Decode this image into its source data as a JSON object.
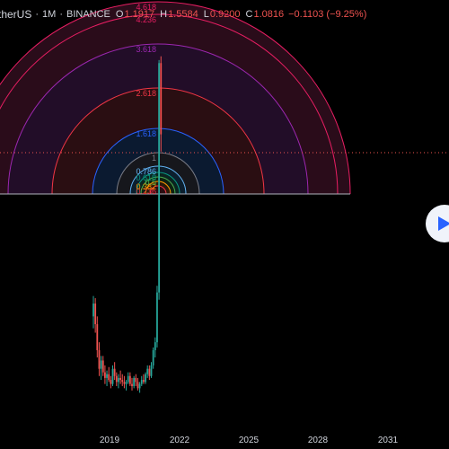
{
  "legend": {
    "symbol": "therUS",
    "interval": "1M",
    "exchange": "BINANCE",
    "open_label": "O",
    "open": "1.1917",
    "high_label": "H",
    "high": "1.5584",
    "low_label": "L",
    "low": "0.9200",
    "close_label": "C",
    "close": "1.0816",
    "change": "−0.1103 (−9.25%)"
  },
  "fib_levels": [
    {
      "label": "0.236",
      "color": "#f23645",
      "fill": "#2a0e12"
    },
    {
      "label": "0.382",
      "color": "#ff9800",
      "fill": "#2a1a0a"
    },
    {
      "label": "0.5",
      "color": "#4caf50",
      "fill": "#0e2212"
    },
    {
      "label": "0.618",
      "color": "#089981",
      "fill": "#0b2420"
    },
    {
      "label": "0.786",
      "color": "#64b5f6",
      "fill": "#0c1f2e"
    },
    {
      "label": "1",
      "color": "#787b86",
      "fill": "#16171c"
    },
    {
      "label": "1.618",
      "color": "#2962ff",
      "fill": "#0b1a30"
    },
    {
      "label": "2.618",
      "color": "#f23645",
      "fill": "#2a0e12"
    },
    {
      "label": "3.618",
      "color": "#9c27b0",
      "fill": "#220d28"
    },
    {
      "label": "4.236",
      "color": "#e91e63",
      "fill": "#2a0c1a"
    },
    {
      "label": "4.618",
      "color": "#e91e63",
      "fill": "#2a0c1a"
    }
  ],
  "chart_data": {
    "type": "candlestick",
    "x_ticks": [
      "2019",
      "2022",
      "2025",
      "2028",
      "2031"
    ],
    "up_color": "#26a69a",
    "down_color": "#ef5350",
    "last_price_line_color": "#ef5350",
    "candles": [
      {
        "o": 0.9,
        "h": 1.15,
        "l": 0.78,
        "c": 1.05
      },
      {
        "o": 1.05,
        "h": 1.12,
        "l": 0.74,
        "c": 0.82
      },
      {
        "o": 0.82,
        "h": 0.9,
        "l": 0.55,
        "c": 0.6
      },
      {
        "o": 0.6,
        "h": 0.66,
        "l": 0.44,
        "c": 0.48
      },
      {
        "o": 0.48,
        "h": 0.56,
        "l": 0.42,
        "c": 0.53
      },
      {
        "o": 0.53,
        "h": 0.56,
        "l": 0.44,
        "c": 0.46
      },
      {
        "o": 0.46,
        "h": 0.5,
        "l": 0.4,
        "c": 0.43
      },
      {
        "o": 0.43,
        "h": 0.47,
        "l": 0.39,
        "c": 0.45
      },
      {
        "o": 0.45,
        "h": 0.49,
        "l": 0.41,
        "c": 0.42
      },
      {
        "o": 0.42,
        "h": 0.44,
        "l": 0.38,
        "c": 0.4
      },
      {
        "o": 0.4,
        "h": 0.5,
        "l": 0.39,
        "c": 0.48
      },
      {
        "o": 0.48,
        "h": 0.52,
        "l": 0.42,
        "c": 0.44
      },
      {
        "o": 0.44,
        "h": 0.46,
        "l": 0.39,
        "c": 0.41
      },
      {
        "o": 0.41,
        "h": 0.45,
        "l": 0.38,
        "c": 0.43
      },
      {
        "o": 0.43,
        "h": 0.47,
        "l": 0.4,
        "c": 0.42
      },
      {
        "o": 0.42,
        "h": 0.45,
        "l": 0.39,
        "c": 0.41
      },
      {
        "o": 0.41,
        "h": 0.44,
        "l": 0.38,
        "c": 0.4
      },
      {
        "o": 0.4,
        "h": 0.42,
        "l": 0.37,
        "c": 0.41
      },
      {
        "o": 0.41,
        "h": 0.46,
        "l": 0.4,
        "c": 0.44
      },
      {
        "o": 0.44,
        "h": 0.46,
        "l": 0.39,
        "c": 0.4
      },
      {
        "o": 0.4,
        "h": 0.43,
        "l": 0.37,
        "c": 0.39
      },
      {
        "o": 0.39,
        "h": 0.44,
        "l": 0.38,
        "c": 0.43
      },
      {
        "o": 0.43,
        "h": 0.45,
        "l": 0.39,
        "c": 0.41
      },
      {
        "o": 0.41,
        "h": 0.43,
        "l": 0.37,
        "c": 0.38
      },
      {
        "o": 0.38,
        "h": 0.41,
        "l": 0.36,
        "c": 0.4
      },
      {
        "o": 0.4,
        "h": 0.44,
        "l": 0.39,
        "c": 0.42
      },
      {
        "o": 0.42,
        "h": 0.45,
        "l": 0.4,
        "c": 0.41
      },
      {
        "o": 0.41,
        "h": 0.46,
        "l": 0.4,
        "c": 0.45
      },
      {
        "o": 0.45,
        "h": 0.5,
        "l": 0.43,
        "c": 0.48
      },
      {
        "o": 0.48,
        "h": 0.5,
        "l": 0.42,
        "c": 0.44
      },
      {
        "o": 0.44,
        "h": 0.52,
        "l": 0.43,
        "c": 0.5
      },
      {
        "o": 0.5,
        "h": 0.62,
        "l": 0.48,
        "c": 0.6
      },
      {
        "o": 0.6,
        "h": 0.7,
        "l": 0.55,
        "c": 0.66
      },
      {
        "o": 0.66,
        "h": 1.3,
        "l": 0.62,
        "c": 1.2
      },
      {
        "o": 1.2,
        "h": 19.5,
        "l": 1.1,
        "c": 18.8
      },
      {
        "o": 18.8,
        "h": 20.4,
        "l": 6.5,
        "c": 8.0
      }
    ]
  }
}
